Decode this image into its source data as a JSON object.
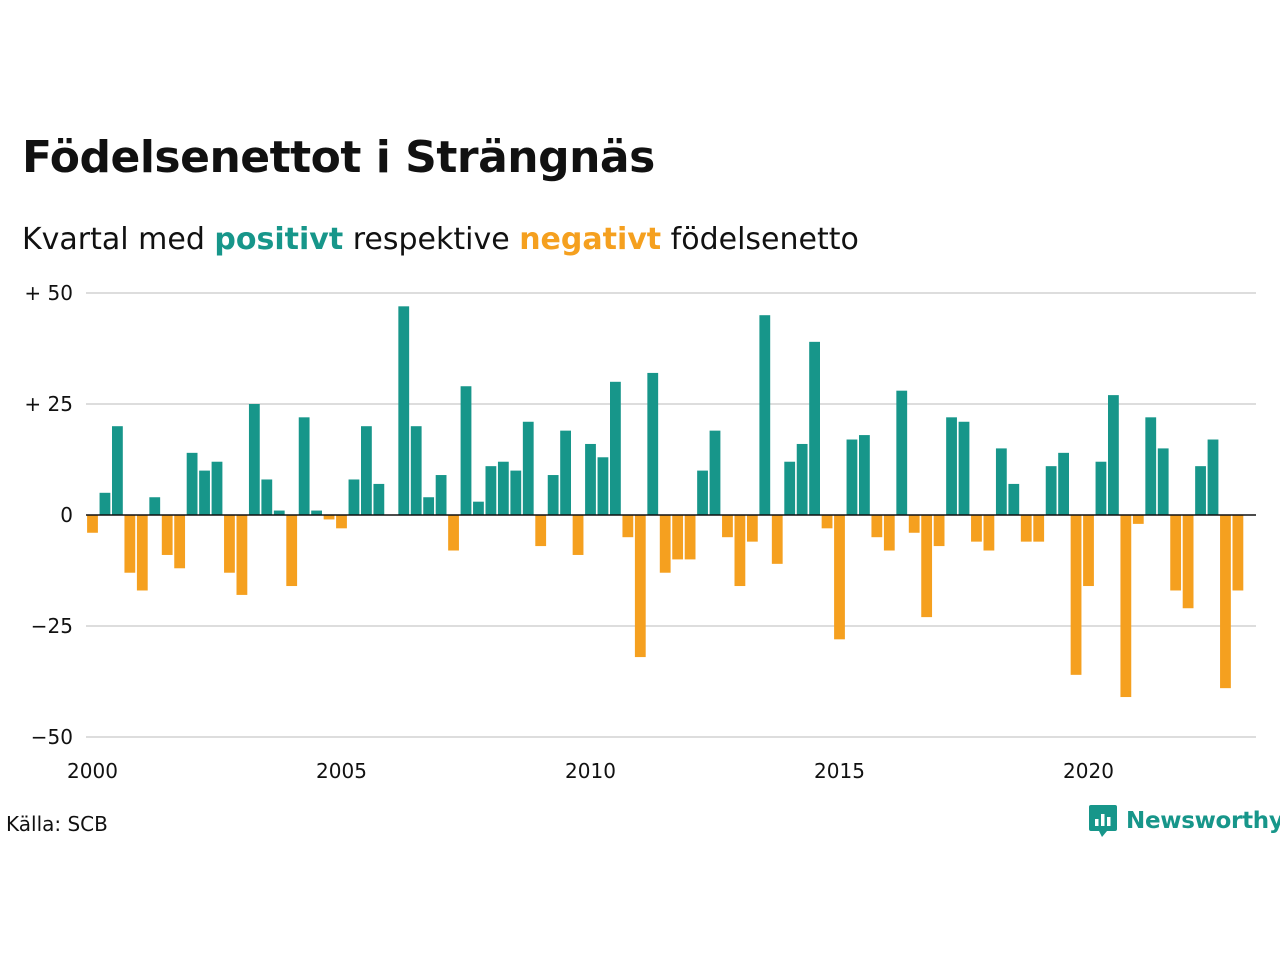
{
  "title": "Födelsenettot i Strängnäs",
  "subtitle": {
    "pre": "Kvartal med ",
    "positive": "positivt",
    "mid": " respektive ",
    "negative": "negativt",
    "post": " födelsenetto"
  },
  "source": "Källa: SCB",
  "logo_text": "Newsworthy",
  "colors": {
    "positive": "#17968a",
    "negative": "#f5a01f",
    "grid": "#dddddd",
    "zero": "#111111"
  },
  "chart_data": {
    "type": "bar",
    "x_start": 2000,
    "x_unit": "quarter",
    "ylim": [
      -50,
      50
    ],
    "y_ticks": [
      50,
      25,
      0,
      -25,
      -50
    ],
    "y_tick_labels": [
      "+ 50",
      "+ 25",
      "0",
      "−25",
      "−50"
    ],
    "x_ticks": [
      2000,
      2005,
      2010,
      2015,
      2020
    ],
    "x_tick_labels": [
      "2000",
      "2005",
      "2010",
      "2015",
      "2020"
    ],
    "grid": true,
    "values": [
      -4,
      5,
      20,
      -13,
      -17,
      4,
      -9,
      -12,
      14,
      10,
      12,
      -13,
      -18,
      25,
      8,
      1,
      -16,
      22,
      1,
      -1,
      -3,
      8,
      20,
      7,
      0,
      47,
      20,
      4,
      9,
      -8,
      29,
      3,
      11,
      12,
      10,
      21,
      -7,
      9,
      19,
      -9,
      16,
      13,
      30,
      -5,
      -32,
      32,
      -13,
      -10,
      -10,
      10,
      19,
      -5,
      -16,
      -6,
      45,
      -11,
      12,
      16,
      39,
      -3,
      -28,
      17,
      18,
      -5,
      -8,
      28,
      -4,
      -23,
      -7,
      22,
      21,
      -6,
      -8,
      15,
      7,
      -6,
      -6,
      11,
      14,
      -36,
      -16,
      12,
      27,
      -41,
      -2,
      22,
      15,
      -17,
      -21,
      11,
      17,
      -39,
      -17
    ]
  }
}
